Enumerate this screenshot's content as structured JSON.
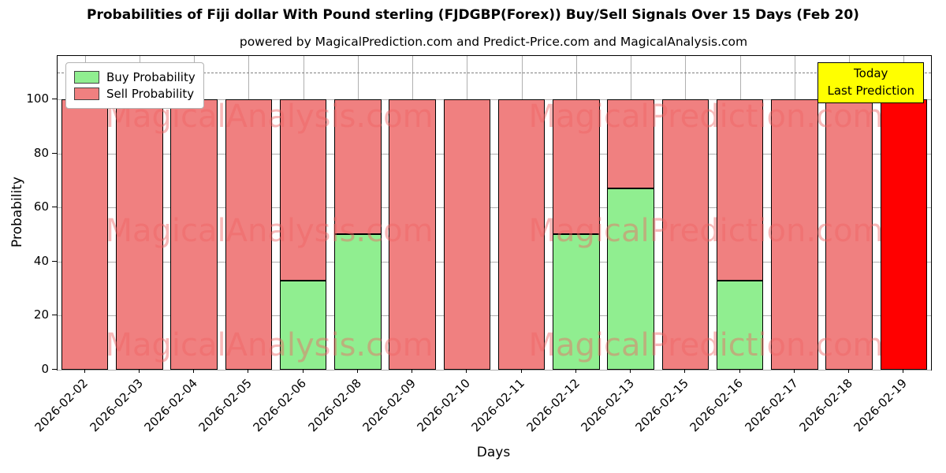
{
  "title": "Probabilities of Fiji dollar With Pound sterling (FJDGBP(Forex)) Buy/Sell Signals Over 15 Days (Feb 20)",
  "subtitle": "powered by MagicalPrediction.com and Predict-Price.com and MagicalAnalysis.com",
  "legend": {
    "buy": "Buy Probability",
    "sell": "Sell Probability"
  },
  "annotation": {
    "line1": "Today",
    "line2": "Last Prediction"
  },
  "watermarks": [
    "MagicalAnalysis.com",
    "MagicalPrediction.com"
  ],
  "colors": {
    "buy": "#90EE90",
    "sell": "#F08080",
    "last": "#FF0000",
    "annotation_bg": "#FFFF00",
    "grid": "#B0B0B0",
    "dashed_line": "#808080",
    "watermark": "rgba(240,100,100,0.45)"
  },
  "chart_data": {
    "type": "bar",
    "stacked": true,
    "categories": [
      "2026-02-02",
      "2026-02-03",
      "2026-02-04",
      "2026-02-05",
      "2026-02-06",
      "2026-02-08",
      "2026-02-09",
      "2026-02-10",
      "2026-02-11",
      "2026-02-12",
      "2026-02-13",
      "2026-02-15",
      "2026-02-16",
      "2026-02-17",
      "2026-02-18",
      "2026-02-19"
    ],
    "series": [
      {
        "name": "Buy Probability",
        "color": "#90EE90",
        "values": [
          0,
          0,
          0,
          0,
          33,
          50,
          0,
          0,
          0,
          50,
          67,
          0,
          33,
          0,
          0,
          0
        ]
      },
      {
        "name": "Sell Probability",
        "color": "#F08080",
        "values": [
          100,
          100,
          100,
          100,
          67,
          50,
          100,
          100,
          100,
          50,
          33,
          100,
          67,
          100,
          100,
          100
        ]
      }
    ],
    "last_bar_color": "#FF0000",
    "title": "Probabilities of Fiji dollar With Pound sterling (FJDGBP(Forex)) Buy/Sell Signals Over 15 Days (Feb 20)",
    "xlabel": "Days",
    "ylabel": "Probability",
    "yticks": [
      0,
      20,
      40,
      60,
      80,
      100
    ],
    "ylim": [
      0,
      116
    ],
    "dashed_line_y": 110,
    "grid": true,
    "legend_position": "upper left"
  }
}
